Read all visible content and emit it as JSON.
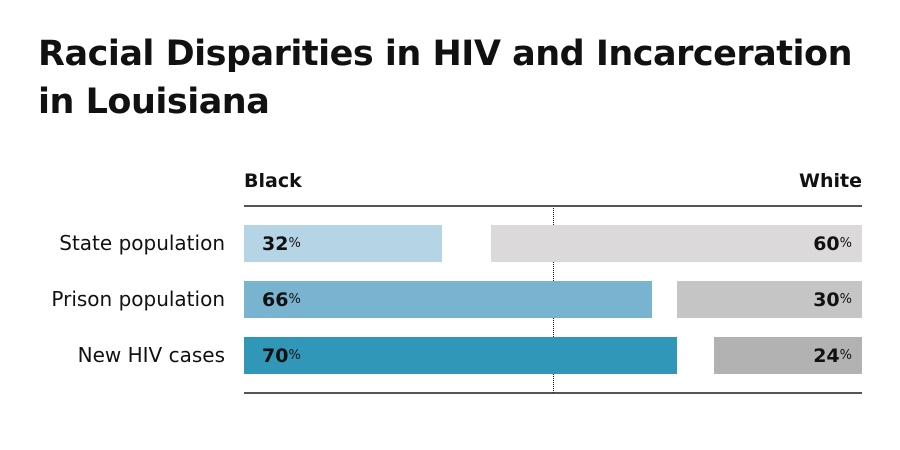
{
  "chart_data": {
    "type": "bar",
    "title": "Racial Disparities in HIV and Incarceration in Louisiana",
    "categories": [
      "State population",
      "Prison population",
      "New HIV cases"
    ],
    "series": [
      {
        "name": "Black",
        "values": [
          32,
          66,
          70
        ],
        "colors": [
          "#b5d5e6",
          "#78b3d0",
          "#3097b9"
        ],
        "anchor": "left"
      },
      {
        "name": "White",
        "values": [
          60,
          30,
          24
        ],
        "colors": [
          "#dbd9da",
          "#c5c5c5",
          "#b2b2b2"
        ],
        "anchor": "right"
      }
    ],
    "unit": "%",
    "xlim": [
      0,
      100
    ]
  }
}
